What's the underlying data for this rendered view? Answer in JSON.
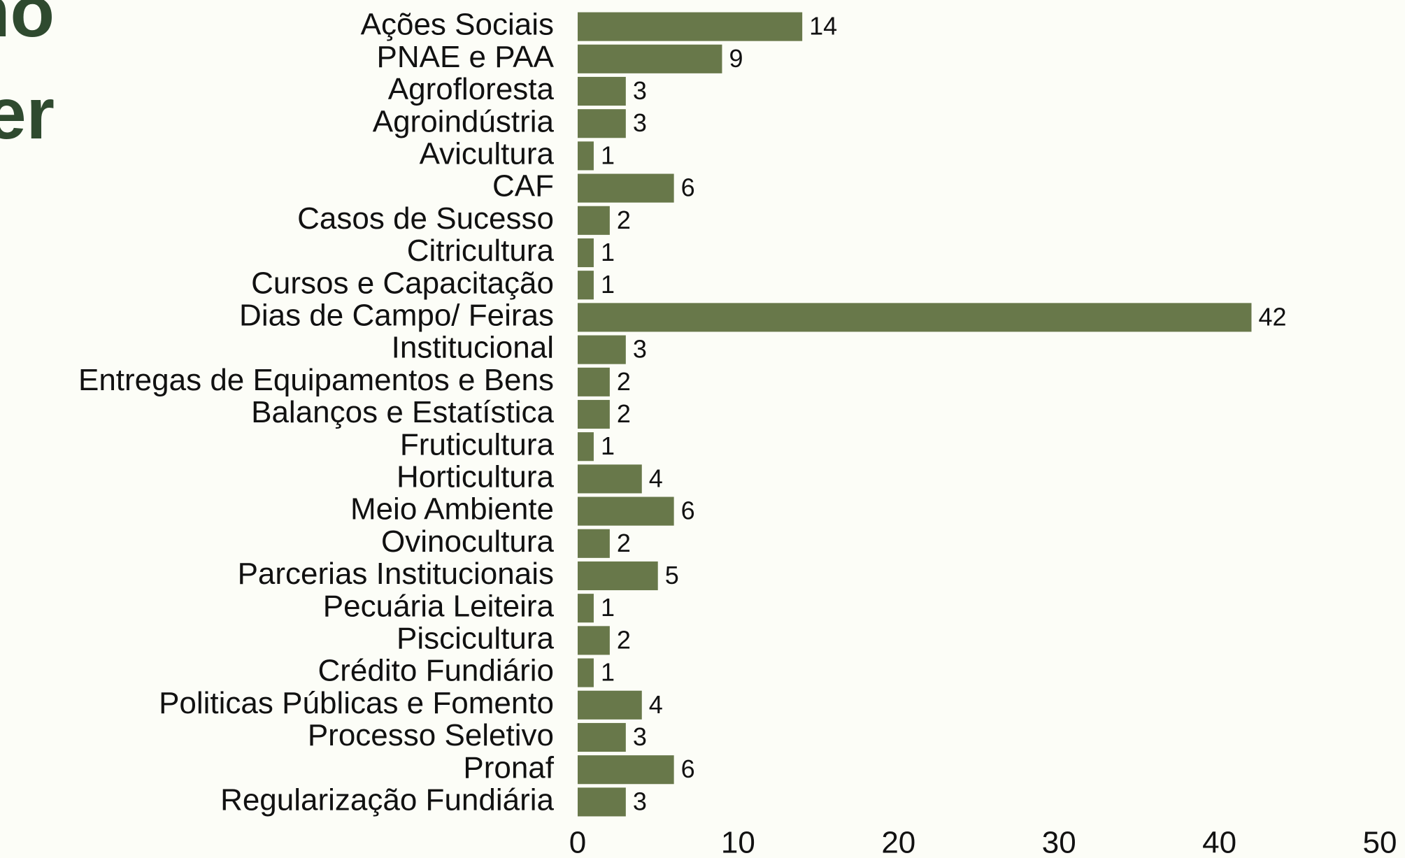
{
  "heading": [
    "no",
    "er"
  ],
  "chart_data": {
    "type": "barh",
    "categories": [
      "Ações Sociais",
      "PNAE e PAA",
      "Agrofloresta",
      "Agroindústria",
      "Avicultura",
      "CAF",
      "Casos de Sucesso",
      "Citricultura",
      "Cursos e Capacitação",
      "Dias de Campo/ Feiras",
      "Institucional",
      "Entregas de Equipamentos e Bens",
      "Balanços e Estatística",
      "Fruticultura",
      "Horticultura",
      "Meio Ambiente",
      "Ovinocultura",
      "Parcerias Institucionais",
      "Pecuária Leiteira",
      "Piscicultura",
      "Crédito Fundiário",
      "Politicas Públicas e Fomento",
      "Processo Seletivo",
      "Pronaf",
      "Regularização Fundiária"
    ],
    "values": [
      14,
      9,
      3,
      3,
      1,
      6,
      2,
      1,
      1,
      42,
      3,
      2,
      2,
      1,
      4,
      6,
      2,
      5,
      1,
      2,
      1,
      4,
      3,
      6,
      3
    ],
    "color": "#68784a",
    "xlim": [
      0,
      50
    ],
    "xticks": [
      0,
      10,
      20,
      30,
      40,
      50
    ],
    "grid": false
  }
}
